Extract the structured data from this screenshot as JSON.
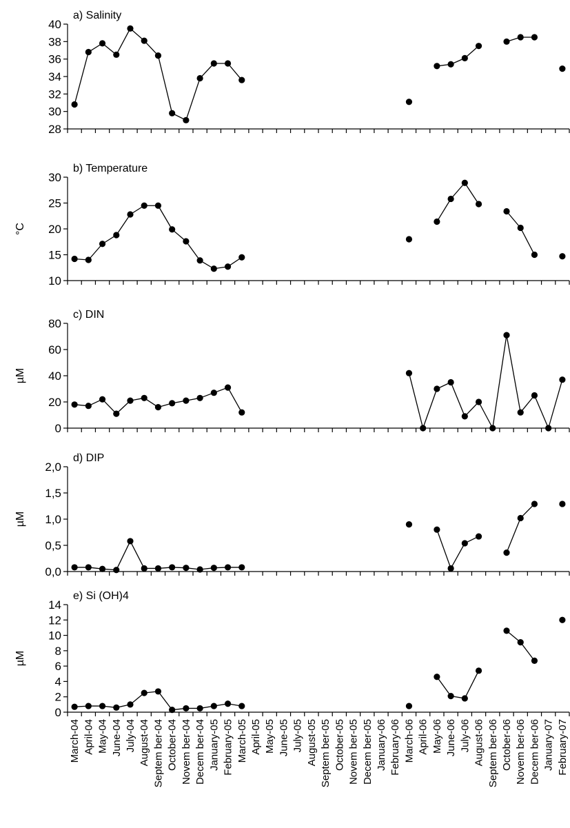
{
  "chart_data": {
    "type": "line",
    "categories": [
      "March-04",
      "April-04",
      "May-04",
      "June-04",
      "July-04",
      "August-04",
      "Septem ber-04",
      "October-04",
      "Novem ber-04",
      "Decem ber-04",
      "January-05",
      "February-05",
      "March-05",
      "April-05",
      "May-05",
      "June-05",
      "July-05",
      "August-05",
      "Septem ber-05",
      "October-05",
      "Novem ber-05",
      "Decem ber-05",
      "January-06",
      "February-06",
      "March-06",
      "April-06",
      "May-06",
      "June-06",
      "July-06",
      "August-06",
      "Septem ber-06",
      "October-06",
      "Novem ber-06",
      "Decem ber-06",
      "January-07",
      "February-07"
    ],
    "panels": [
      {
        "title": "a) Salinity",
        "ylabel": "",
        "ylim": [
          28,
          40
        ],
        "yticks": [
          "28",
          "30",
          "32",
          "34",
          "36",
          "38",
          "40"
        ],
        "values": [
          30.8,
          36.8,
          37.8,
          36.5,
          39.5,
          38.1,
          36.4,
          29.8,
          29.0,
          33.8,
          35.5,
          35.5,
          33.6,
          null,
          null,
          null,
          null,
          null,
          null,
          null,
          null,
          null,
          null,
          null,
          31.1,
          null,
          35.2,
          35.4,
          36.1,
          37.5,
          null,
          38.0,
          38.5,
          38.5,
          null,
          34.9
        ]
      },
      {
        "title": "b) Temperature",
        "ylabel": "°C",
        "ylim": [
          10,
          30
        ],
        "yticks": [
          "10",
          "15",
          "20",
          "25",
          "30"
        ],
        "values": [
          14.2,
          14.0,
          17.1,
          18.8,
          22.8,
          24.5,
          24.5,
          19.9,
          17.6,
          13.9,
          12.3,
          12.7,
          14.5,
          null,
          null,
          null,
          null,
          null,
          null,
          null,
          null,
          null,
          null,
          null,
          18.0,
          null,
          21.4,
          25.8,
          28.9,
          24.8,
          null,
          23.4,
          20.2,
          15.0,
          null,
          14.7
        ]
      },
      {
        "title": "c) DIN",
        "ylabel": "µM",
        "ylim": [
          0,
          80
        ],
        "yticks": [
          "0",
          "20",
          "40",
          "60",
          "80"
        ],
        "values": [
          18,
          17,
          22,
          11,
          21,
          23,
          16,
          19,
          21,
          23,
          27,
          31,
          12,
          null,
          null,
          null,
          null,
          null,
          null,
          null,
          null,
          null,
          null,
          null,
          42,
          0,
          30,
          35,
          9,
          20,
          0,
          71,
          12,
          25,
          0,
          37
        ]
      },
      {
        "title": "d) DIP",
        "ylabel": "µM",
        "ylim": [
          0,
          2
        ],
        "yticks": [
          "0,0",
          "0,5",
          "1,0",
          "1,5",
          "2,0"
        ],
        "values": [
          0.08,
          0.08,
          0.05,
          0.03,
          0.58,
          0.06,
          0.06,
          0.08,
          0.07,
          0.04,
          0.07,
          0.08,
          0.08,
          null,
          null,
          null,
          null,
          null,
          null,
          null,
          null,
          null,
          null,
          null,
          0.9,
          null,
          0.8,
          0.06,
          0.54,
          0.67,
          null,
          0.36,
          1.02,
          1.29,
          null,
          1.29
        ]
      },
      {
        "title": "e) Si (OH)4",
        "ylabel": "µM",
        "ylim": [
          0,
          14
        ],
        "yticks": [
          "0",
          "2",
          "4",
          "6",
          "8",
          "10",
          "12",
          "14"
        ],
        "values": [
          0.7,
          0.8,
          0.8,
          0.6,
          1.0,
          2.5,
          2.7,
          0.3,
          0.5,
          0.5,
          0.8,
          1.1,
          0.8,
          null,
          null,
          null,
          null,
          null,
          null,
          null,
          null,
          null,
          null,
          null,
          0.8,
          null,
          4.6,
          2.1,
          1.8,
          5.4,
          null,
          10.6,
          9.1,
          6.7,
          null,
          12.0
        ]
      }
    ]
  }
}
